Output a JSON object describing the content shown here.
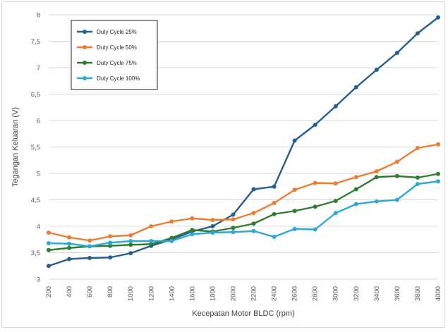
{
  "chart_data": {
    "type": "line",
    "title": "",
    "xlabel": "Kecepatan Motor BLDC (rpm)",
    "ylabel": "Tegangan Keluaran (V)",
    "categories": [
      "200",
      "400",
      "600",
      "800",
      "1000",
      "1200",
      "1400",
      "1600",
      "1800",
      "2000",
      "2200",
      "2400",
      "2600",
      "2800",
      "3000",
      "3200",
      "3400",
      "3600",
      "3800",
      "4000"
    ],
    "ylim": [
      3,
      8
    ],
    "yticks": [
      "3",
      "3,5",
      "4",
      "4,5",
      "5",
      "5,5",
      "6",
      "6,5",
      "7",
      "7,5",
      "8"
    ],
    "grid": true,
    "legend_position": "top-left",
    "series": [
      {
        "name": "Duty Cycle 25%",
        "color": "#255e91",
        "values": [
          3.25,
          3.38,
          3.4,
          3.41,
          3.49,
          3.63,
          3.75,
          3.9,
          4.0,
          4.22,
          4.7,
          4.75,
          5.62,
          5.92,
          6.27,
          6.63,
          6.96,
          7.28,
          7.65,
          7.95
        ]
      },
      {
        "name": "Duty Cycle 50%",
        "color": "#ed7d31",
        "values": [
          3.88,
          3.79,
          3.73,
          3.81,
          3.83,
          4.0,
          4.09,
          4.15,
          4.12,
          4.13,
          4.25,
          4.44,
          4.69,
          4.82,
          4.81,
          4.93,
          5.04,
          5.22,
          5.48,
          5.55
        ]
      },
      {
        "name": "Duty Cycle 75%",
        "color": "#2e7d32",
        "values": [
          3.55,
          3.59,
          3.62,
          3.63,
          3.65,
          3.66,
          3.78,
          3.93,
          3.9,
          3.97,
          4.05,
          4.23,
          4.29,
          4.37,
          4.48,
          4.7,
          4.93,
          4.95,
          4.92,
          4.99
        ]
      },
      {
        "name": "Duty Cycle 100%",
        "color": "#2ea8d5",
        "values": [
          3.68,
          3.67,
          3.62,
          3.69,
          3.72,
          3.72,
          3.72,
          3.85,
          3.88,
          3.89,
          3.91,
          3.8,
          3.95,
          3.94,
          4.25,
          4.42,
          4.47,
          4.5,
          4.8,
          4.85
        ]
      }
    ]
  }
}
